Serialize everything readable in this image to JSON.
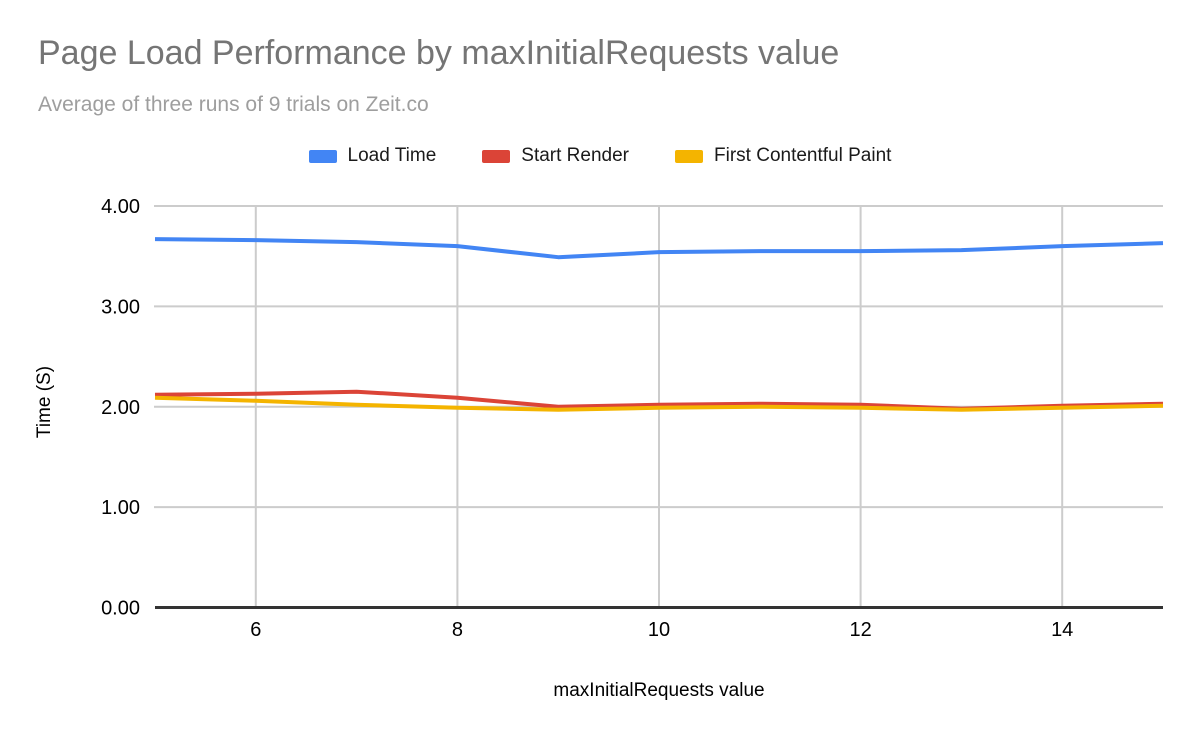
{
  "header": {
    "title": "Page Load Performance by maxInitialRequests value",
    "subtitle": "Average of three runs of 9 trials on Zeit.co"
  },
  "colors": {
    "title_text": "#757575",
    "subtitle_text": "#9e9e9e",
    "legend_text": "#1a1a1a",
    "tick_text": "#000000",
    "gridline": "#cccccc",
    "axis_line": "#333333",
    "background": "#ffffff"
  },
  "chart_data": {
    "type": "line",
    "title": "Page Load Performance by maxInitialRequests value",
    "subtitle": "Average of three runs of 9 trials on Zeit.co",
    "xlabel": "maxInitialRequests value",
    "ylabel": "Time (S)",
    "xlim": [
      5,
      15
    ],
    "ylim": [
      0,
      4
    ],
    "grid": true,
    "legend_position": "top",
    "x": [
      5,
      6,
      7,
      8,
      9,
      10,
      11,
      12,
      13,
      14,
      15
    ],
    "x_ticks": [
      6,
      8,
      10,
      12,
      14
    ],
    "y_tick_values": [
      0,
      1,
      2,
      3,
      4
    ],
    "y_tick_labels": [
      "0.00",
      "1.00",
      "2.00",
      "3.00",
      "4.00"
    ],
    "series": [
      {
        "name": "Load Time",
        "color": "#4285F4",
        "values": [
          3.67,
          3.66,
          3.64,
          3.6,
          3.49,
          3.54,
          3.55,
          3.55,
          3.56,
          3.6,
          3.63
        ]
      },
      {
        "name": "Start Render",
        "color": "#DB4437",
        "values": [
          2.12,
          2.13,
          2.15,
          2.09,
          2.0,
          2.02,
          2.03,
          2.02,
          1.98,
          2.01,
          2.03
        ]
      },
      {
        "name": "First Contentful Paint",
        "color": "#F4B400",
        "values": [
          2.09,
          2.06,
          2.02,
          1.99,
          1.97,
          1.99,
          2.0,
          1.99,
          1.97,
          1.99,
          2.01
        ]
      }
    ]
  }
}
